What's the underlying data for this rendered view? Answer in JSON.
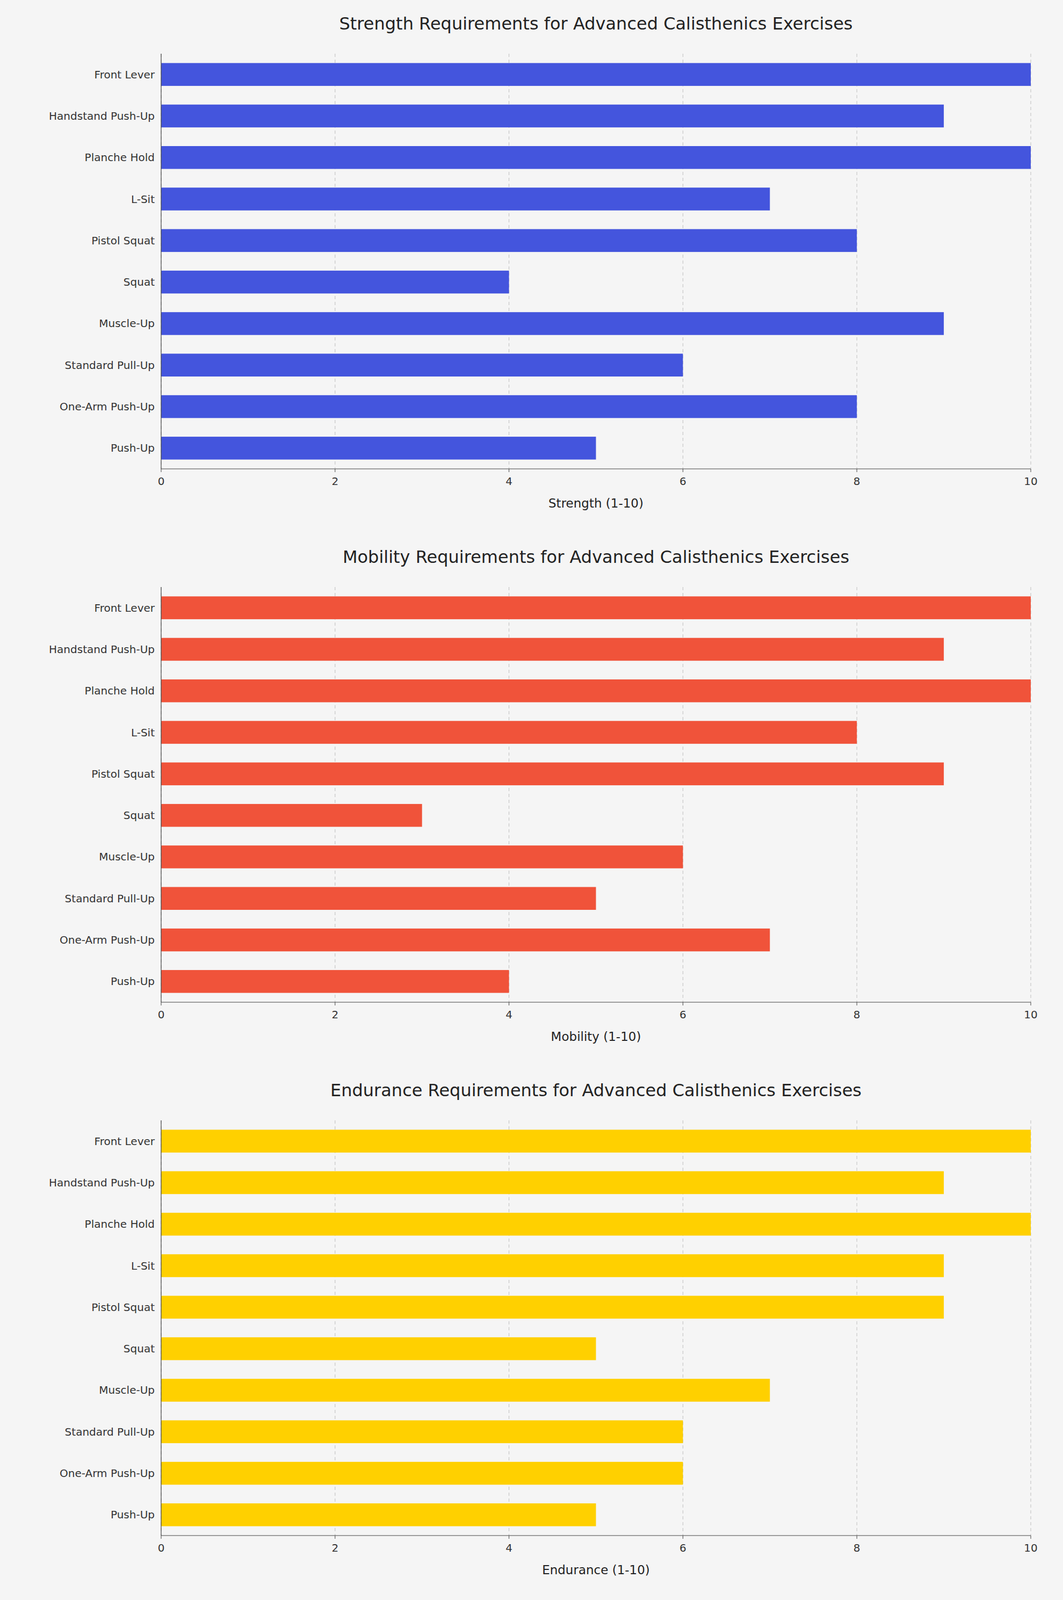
{
  "chart_data": [
    {
      "type": "bar",
      "orientation": "horizontal",
      "title": "Strength Requirements for Advanced Calisthenics Exercises",
      "xlabel": "Strength (1-10)",
      "categories": [
        "Front Lever",
        "Handstand Push-Up",
        "Planche Hold",
        "L-Sit",
        "Pistol Squat",
        "Squat",
        "Muscle-Up",
        "Standard Pull-Up",
        "One-Arm Push-Up",
        "Push-Up"
      ],
      "values": [
        10,
        9,
        10,
        7,
        8,
        4,
        9,
        6,
        8,
        5
      ],
      "color": "#4455dd",
      "xlim": [
        0,
        10
      ],
      "xticks": [
        0,
        2,
        4,
        6,
        8,
        10
      ],
      "grid": true
    },
    {
      "type": "bar",
      "orientation": "horizontal",
      "title": "Mobility Requirements for Advanced Calisthenics Exercises",
      "xlabel": "Mobility (1-10)",
      "categories": [
        "Front Lever",
        "Handstand Push-Up",
        "Planche Hold",
        "L-Sit",
        "Pistol Squat",
        "Squat",
        "Muscle-Up",
        "Standard Pull-Up",
        "One-Arm Push-Up",
        "Push-Up"
      ],
      "values": [
        10,
        9,
        10,
        8,
        9,
        3,
        6,
        5,
        7,
        4
      ],
      "color": "#f0533a",
      "xlim": [
        0,
        10
      ],
      "xticks": [
        0,
        2,
        4,
        6,
        8,
        10
      ],
      "grid": true
    },
    {
      "type": "bar",
      "orientation": "horizontal",
      "title": "Endurance Requirements for Advanced Calisthenics Exercises",
      "xlabel": "Endurance (1-10)",
      "categories": [
        "Front Lever",
        "Handstand Push-Up",
        "Planche Hold",
        "L-Sit",
        "Pistol Squat",
        "Squat",
        "Muscle-Up",
        "Standard Pull-Up",
        "One-Arm Push-Up",
        "Push-Up"
      ],
      "values": [
        10,
        9,
        10,
        9,
        9,
        5,
        7,
        6,
        6,
        5
      ],
      "color": "#ffd000",
      "xlim": [
        0,
        10
      ],
      "xticks": [
        0,
        2,
        4,
        6,
        8,
        10
      ],
      "grid": true
    }
  ]
}
